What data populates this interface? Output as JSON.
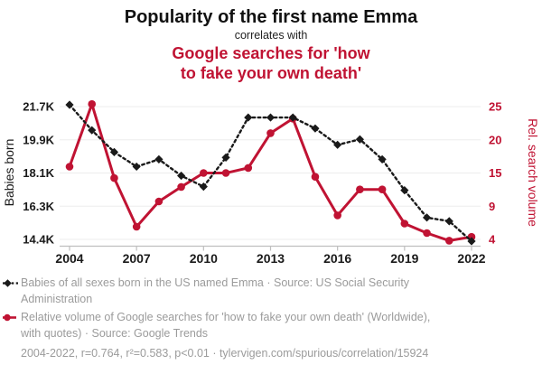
{
  "colors": {
    "accent_red": "#c01333",
    "series_black": "#1a1a1a",
    "grey_text": "#9b9b9b",
    "gridline": "#ededed",
    "axis_line": "#bfbfbf"
  },
  "chart_data": {
    "type": "line",
    "title": "Popularity of the first name Emma",
    "connector": "correlates with",
    "subtitle_lines": [
      "Google searches for 'how",
      "to fake your own death'"
    ],
    "x": [
      2004,
      2005,
      2006,
      2007,
      2008,
      2009,
      2010,
      2011,
      2012,
      2013,
      2014,
      2015,
      2016,
      2017,
      2018,
      2019,
      2020,
      2021,
      2022
    ],
    "x_tick_labels": [
      "2004",
      "2007",
      "2010",
      "2013",
      "2016",
      "2019",
      "2022"
    ],
    "left_axis": {
      "label": "Babies born",
      "tick_labels": [
        "21.7K",
        "19.9K",
        "18.1K",
        "16.3K",
        "14.4K"
      ],
      "max": 21.7,
      "min": 14.4,
      "unit": "thousand babies"
    },
    "right_axis": {
      "label": "Rel. search volume",
      "tick_labels": [
        "25",
        "20",
        "15",
        "9",
        "4"
      ],
      "max": 25,
      "min": 4
    },
    "grid": "horizontal",
    "legend_position": "bottom",
    "series": [
      {
        "name": "Babies of all sexes born in the US named Emma",
        "axis": "left",
        "color": "#1a1a1a",
        "line_style": "dashed",
        "marker": "diamond",
        "values": [
          21.8,
          20.4,
          19.2,
          18.4,
          18.8,
          17.9,
          17.3,
          18.9,
          21.1,
          21.1,
          21.1,
          20.5,
          19.6,
          19.9,
          18.8,
          17.1,
          15.6,
          15.4,
          14.3
        ]
      },
      {
        "name": "Relative volume of Google searches for 'how to fake your own death'",
        "axis": "right",
        "color": "#c01333",
        "line_style": "solid",
        "marker": "circle",
        "values": [
          15.5,
          25.4,
          13.7,
          6.0,
          10.0,
          12.3,
          14.5,
          14.5,
          15.3,
          20.8,
          23.1,
          13.9,
          7.8,
          11.9,
          11.9,
          6.5,
          5.0,
          3.8,
          4.4
        ]
      }
    ]
  },
  "legend": {
    "items": [
      {
        "marker": "black-diamond-dashed",
        "text": "Babies of all sexes born in the US named Emma · Source: US Social Security Administration"
      },
      {
        "marker": "red-circle-solid",
        "text": "Relative volume of Google searches for 'how to fake your own death' (Worldwide), with quotes) · Source: Google Trends"
      }
    ]
  },
  "footer": {
    "text": "2004-2022, r=0.764, r²=0.583, p<0.01 · tylervigen.com/spurious/correlation/15924"
  }
}
